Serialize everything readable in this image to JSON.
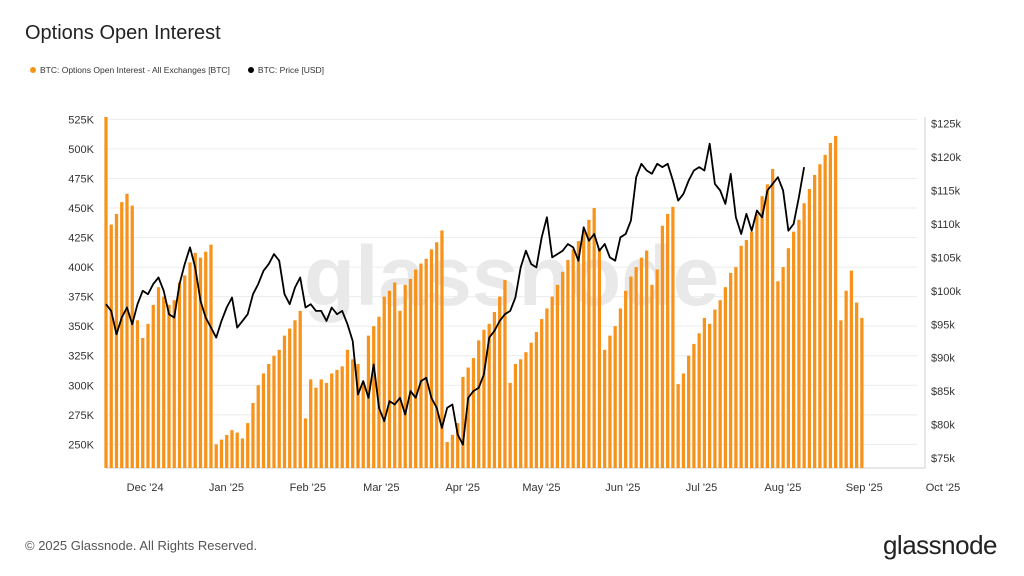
{
  "title": "Options Open Interest",
  "legend": [
    {
      "label": "BTC: Options Open Interest - All Exchanges [BTC]",
      "color": "#F7931A"
    },
    {
      "label": "BTC: Price [USD]",
      "color": "#000000"
    }
  ],
  "footer": "© 2025 Glassnode. All Rights Reserved.",
  "brand": "glassnode",
  "watermark": "glassnode",
  "chart_data": {
    "type": "bar",
    "title": "Options Open Interest",
    "x_range": [
      "2024-11-26",
      "2025-10-01"
    ],
    "x_tick_labels": [
      "Dec '24",
      "Jan '25",
      "Feb '25",
      "Mar '25",
      "Apr '25",
      "May '25",
      "Jun '25",
      "Jul '25",
      "Aug '25",
      "Sep '25",
      "Oct '25"
    ],
    "x_tick_dates": [
      "2024-12-01",
      "2025-01-01",
      "2025-02-01",
      "2025-03-01",
      "2025-04-01",
      "2025-05-01",
      "2025-06-01",
      "2025-07-01",
      "2025-08-01",
      "2025-09-01",
      "2025-10-01"
    ],
    "y_left": {
      "label": "",
      "range": [
        230000,
        527000
      ],
      "tick_values": [
        250000,
        275000,
        300000,
        325000,
        350000,
        375000,
        400000,
        425000,
        450000,
        475000,
        500000,
        525000
      ],
      "tick_labels": [
        "250K",
        "275K",
        "300K",
        "325K",
        "350K",
        "375K",
        "400K",
        "425K",
        "450K",
        "475K",
        "500K",
        "525K"
      ]
    },
    "y_right": {
      "label": "",
      "range": [
        73500,
        126000
      ],
      "tick_values": [
        75000,
        80000,
        85000,
        90000,
        95000,
        100000,
        105000,
        110000,
        115000,
        120000,
        125000
      ],
      "tick_labels": [
        "$75k",
        "$80k",
        "$85k",
        "$90k",
        "$95k",
        "$100k",
        "$105k",
        "$110k",
        "$115k",
        "$120k",
        "$125k"
      ]
    },
    "grid": true,
    "legend_position": "top-left",
    "series": [
      {
        "name": "BTC: Options Open Interest - All Exchanges [BTC]",
        "type": "bar",
        "axis": "left",
        "color": "#F7931A",
        "start_date": "2024-11-26",
        "step_days": 2,
        "values": [
          528000,
          436000,
          445000,
          455000,
          462000,
          452000,
          355000,
          340000,
          352000,
          368000,
          383000,
          375000,
          368000,
          372000,
          387000,
          393000,
          404000,
          412000,
          408000,
          413000,
          419000,
          250000,
          254000,
          258000,
          262000,
          260000,
          255000,
          268000,
          285000,
          300000,
          310000,
          318000,
          325000,
          330000,
          342000,
          348000,
          355000,
          363000,
          272000,
          305000,
          298000,
          305000,
          302000,
          310000,
          313000,
          316000,
          330000,
          322000,
          318000,
          303000,
          342000,
          350000,
          358000,
          375000,
          380000,
          387000,
          363000,
          385000,
          390000,
          398000,
          403000,
          407000,
          415000,
          421000,
          431000,
          252000,
          258000,
          268000,
          307000,
          315000,
          323000,
          338000,
          347000,
          352000,
          362000,
          375000,
          389000,
          302000,
          318000,
          322000,
          328000,
          336000,
          345000,
          356000,
          365000,
          375000,
          385000,
          396000,
          406000,
          415000,
          422000,
          430000,
          440000,
          450000,
          416000,
          330000,
          342000,
          350000,
          365000,
          380000,
          392000,
          400000,
          408000,
          414000,
          385000,
          398000,
          435000,
          445000,
          451000,
          301000,
          310000,
          325000,
          335000,
          344000,
          357000,
          352000,
          364000,
          372000,
          383000,
          395000,
          400000,
          418000,
          423000,
          430000,
          445000,
          460000,
          470000,
          483000,
          388000,
          400000,
          416000,
          430000,
          440000,
          454000,
          466000,
          478000,
          487000,
          495000,
          505000,
          511000,
          355000,
          380000,
          397000,
          370000,
          357000
        ],
        "note_series": []
      },
      {
        "name": "BTC: Price [USD]",
        "type": "line",
        "axis": "right",
        "color": "#000000",
        "start_date": "2024-11-26",
        "step_days": 2,
        "values": [
          98000,
          97000,
          93500,
          96000,
          97500,
          95000,
          98000,
          100000,
          99500,
          101000,
          102000,
          100000,
          96500,
          96000,
          101000,
          104000,
          106500,
          103500,
          98500,
          96000,
          94500,
          93000,
          95500,
          97500,
          99000,
          94500,
          95500,
          96500,
          99500,
          101000,
          103000,
          104000,
          105500,
          104500,
          99500,
          98000,
          100500,
          102000,
          97500,
          98000,
          97000,
          97000,
          95500,
          97500,
          96500,
          97000,
          95000,
          92500,
          84500,
          86500,
          84000,
          89000,
          82500,
          80500,
          83500,
          83000,
          84000,
          81500,
          85000,
          84000,
          86500,
          87000,
          84000,
          82500,
          79500,
          82500,
          83000,
          78500,
          77000,
          84000,
          85000,
          85500,
          87500,
          93000,
          94000,
          95500,
          96500,
          97000,
          99000,
          103500,
          106000,
          104000,
          103500,
          108000,
          111000,
          105000,
          105500,
          106000,
          107000,
          106500,
          104500,
          109500,
          107500,
          108500,
          106000,
          107000,
          105000,
          104500,
          108000,
          108500,
          110500,
          117000,
          119000,
          118000,
          117500,
          119000,
          118500,
          119000,
          116500,
          113500,
          114500,
          116500,
          118000,
          118500,
          118000,
          122000,
          116000,
          115000,
          113000,
          117500,
          111000,
          108500,
          111500,
          109000,
          112000,
          111000,
          115000,
          116000,
          117000,
          115000,
          109000,
          110000,
          114000,
          118500
        ],
        "note_series": []
      }
    ]
  }
}
